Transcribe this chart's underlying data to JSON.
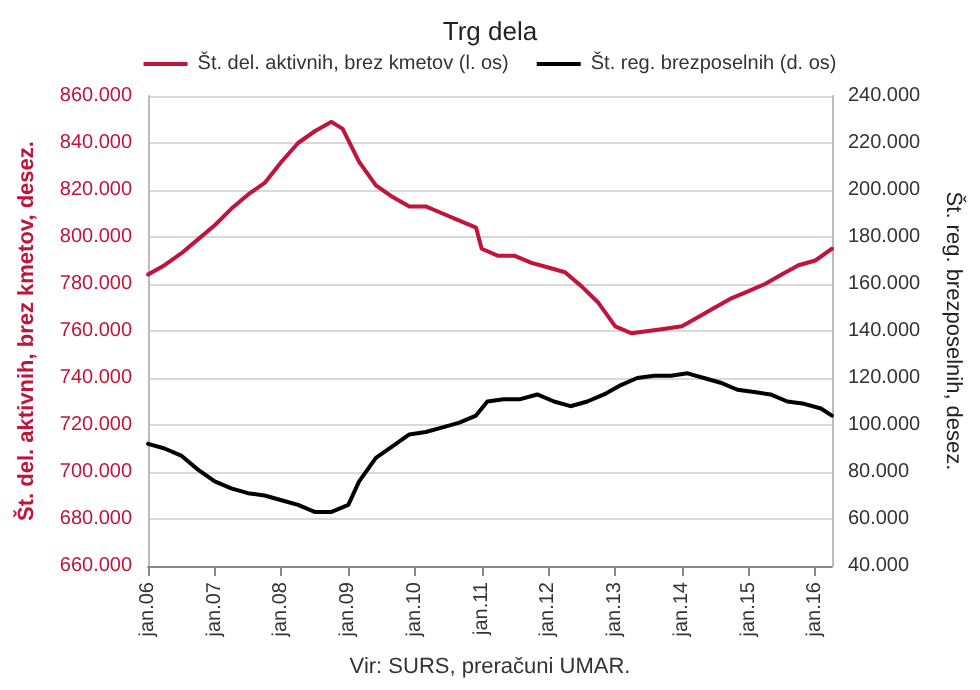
{
  "chart_data": {
    "type": "line",
    "title": "Trg dela",
    "ylabel": "Št. del. aktivnih, brez kmetov, desez.",
    "y2label": "Št. reg. brezposelnih, desez.",
    "annotations": [
      "Vir: SURS, preračuni UMAR."
    ],
    "legend": "top",
    "grid": "y",
    "marker": "none",
    "line_style": "solid",
    "xlim": [
      "2006-01",
      "2016-04"
    ],
    "xticks": [
      {
        "value": "2006-01",
        "label": "jan.06"
      },
      {
        "value": "2007-01",
        "label": "jan.07"
      },
      {
        "value": "2008-01",
        "label": "jan.08"
      },
      {
        "value": "2009-01",
        "label": "jan.09"
      },
      {
        "value": "2010-01",
        "label": "jan.10"
      },
      {
        "value": "2011-01",
        "label": "jan.11"
      },
      {
        "value": "2012-01",
        "label": "jan.12"
      },
      {
        "value": "2013-01",
        "label": "jan.13"
      },
      {
        "value": "2014-01",
        "label": "jan.14"
      },
      {
        "value": "2015-01",
        "label": "jan.15"
      },
      {
        "value": "2016-01",
        "label": "jan.16"
      }
    ],
    "ylim": [
      660000,
      860000
    ],
    "yticks": [
      {
        "value": 660000,
        "label": "660.000"
      },
      {
        "value": 680000,
        "label": "680.000"
      },
      {
        "value": 700000,
        "label": "700.000"
      },
      {
        "value": 720000,
        "label": "720.000"
      },
      {
        "value": 740000,
        "label": "740.000"
      },
      {
        "value": 760000,
        "label": "760.000"
      },
      {
        "value": 780000,
        "label": "780.000"
      },
      {
        "value": 800000,
        "label": "800.000"
      },
      {
        "value": 820000,
        "label": "820.000"
      },
      {
        "value": 840000,
        "label": "840.000"
      },
      {
        "value": 860000,
        "label": "860.000"
      }
    ],
    "y2lim": [
      40000,
      240000
    ],
    "y2ticks": [
      {
        "value": 40000,
        "label": "40.000"
      },
      {
        "value": 60000,
        "label": "60.000"
      },
      {
        "value": 80000,
        "label": "80.000"
      },
      {
        "value": 100000,
        "label": "100.000"
      },
      {
        "value": 120000,
        "label": "120.000"
      },
      {
        "value": 140000,
        "label": "140.000"
      },
      {
        "value": 160000,
        "label": "160.000"
      },
      {
        "value": 180000,
        "label": "180.000"
      },
      {
        "value": 200000,
        "label": "200.000"
      },
      {
        "value": 220000,
        "label": "220.000"
      },
      {
        "value": 240000,
        "label": "240.000"
      }
    ],
    "series": [
      {
        "name": "Št. del. aktivnih, brez kmetov (l. os)",
        "color": "#c0143c",
        "x": [
          "2006-01",
          "2006-04",
          "2006-07",
          "2006-10",
          "2007-01",
          "2007-04",
          "2007-07",
          "2007-10",
          "2008-01",
          "2008-04",
          "2008-07",
          "2008-10",
          "2008-12",
          "2009-03",
          "2009-06",
          "2009-09",
          "2009-12",
          "2010-03",
          "2010-06",
          "2010-09",
          "2010-12",
          "2011-01",
          "2011-04",
          "2011-07",
          "2011-10",
          "2012-01",
          "2012-04",
          "2012-07",
          "2012-10",
          "2013-01",
          "2013-04",
          "2013-07",
          "2013-10",
          "2014-01",
          "2014-04",
          "2014-07",
          "2014-10",
          "2015-01",
          "2015-04",
          "2015-07",
          "2015-10",
          "2016-01",
          "2016-04"
        ],
        "values": [
          784000,
          788000,
          793000,
          799000,
          805000,
          812000,
          818000,
          823000,
          832000,
          840000,
          845000,
          849000,
          846000,
          832000,
          822000,
          817000,
          813000,
          813000,
          810000,
          807000,
          804000,
          795000,
          792000,
          792000,
          789000,
          787000,
          785000,
          779000,
          772000,
          762000,
          759000,
          760000,
          761000,
          762000,
          766000,
          770000,
          774000,
          777000,
          780000,
          784000,
          788000,
          790000,
          795000
        ]
      },
      {
        "name": "Št. reg. brezposelnih (d. os)",
        "color": "#000000",
        "axis": "y2",
        "x": [
          "2006-01",
          "2006-04",
          "2006-07",
          "2006-10",
          "2007-01",
          "2007-04",
          "2007-07",
          "2007-10",
          "2008-01",
          "2008-04",
          "2008-07",
          "2008-10",
          "2009-01",
          "2009-03",
          "2009-06",
          "2009-09",
          "2009-12",
          "2010-03",
          "2010-06",
          "2010-09",
          "2010-12",
          "2011-02",
          "2011-05",
          "2011-08",
          "2011-11",
          "2012-02",
          "2012-05",
          "2012-08",
          "2012-11",
          "2013-02",
          "2013-05",
          "2013-08",
          "2013-11",
          "2014-02",
          "2014-05",
          "2014-08",
          "2014-11",
          "2015-02",
          "2015-05",
          "2015-08",
          "2015-11",
          "2016-02",
          "2016-04"
        ],
        "values": [
          92000,
          90000,
          87000,
          81000,
          76000,
          73000,
          71000,
          70000,
          68000,
          66000,
          63000,
          63000,
          66000,
          76000,
          86000,
          91000,
          96000,
          97000,
          99000,
          101000,
          104000,
          110000,
          111000,
          111000,
          113000,
          110000,
          108000,
          110000,
          113000,
          117000,
          120000,
          121000,
          121000,
          122000,
          120000,
          118000,
          115000,
          114000,
          113000,
          110000,
          109000,
          107000,
          104000
        ]
      }
    ]
  }
}
